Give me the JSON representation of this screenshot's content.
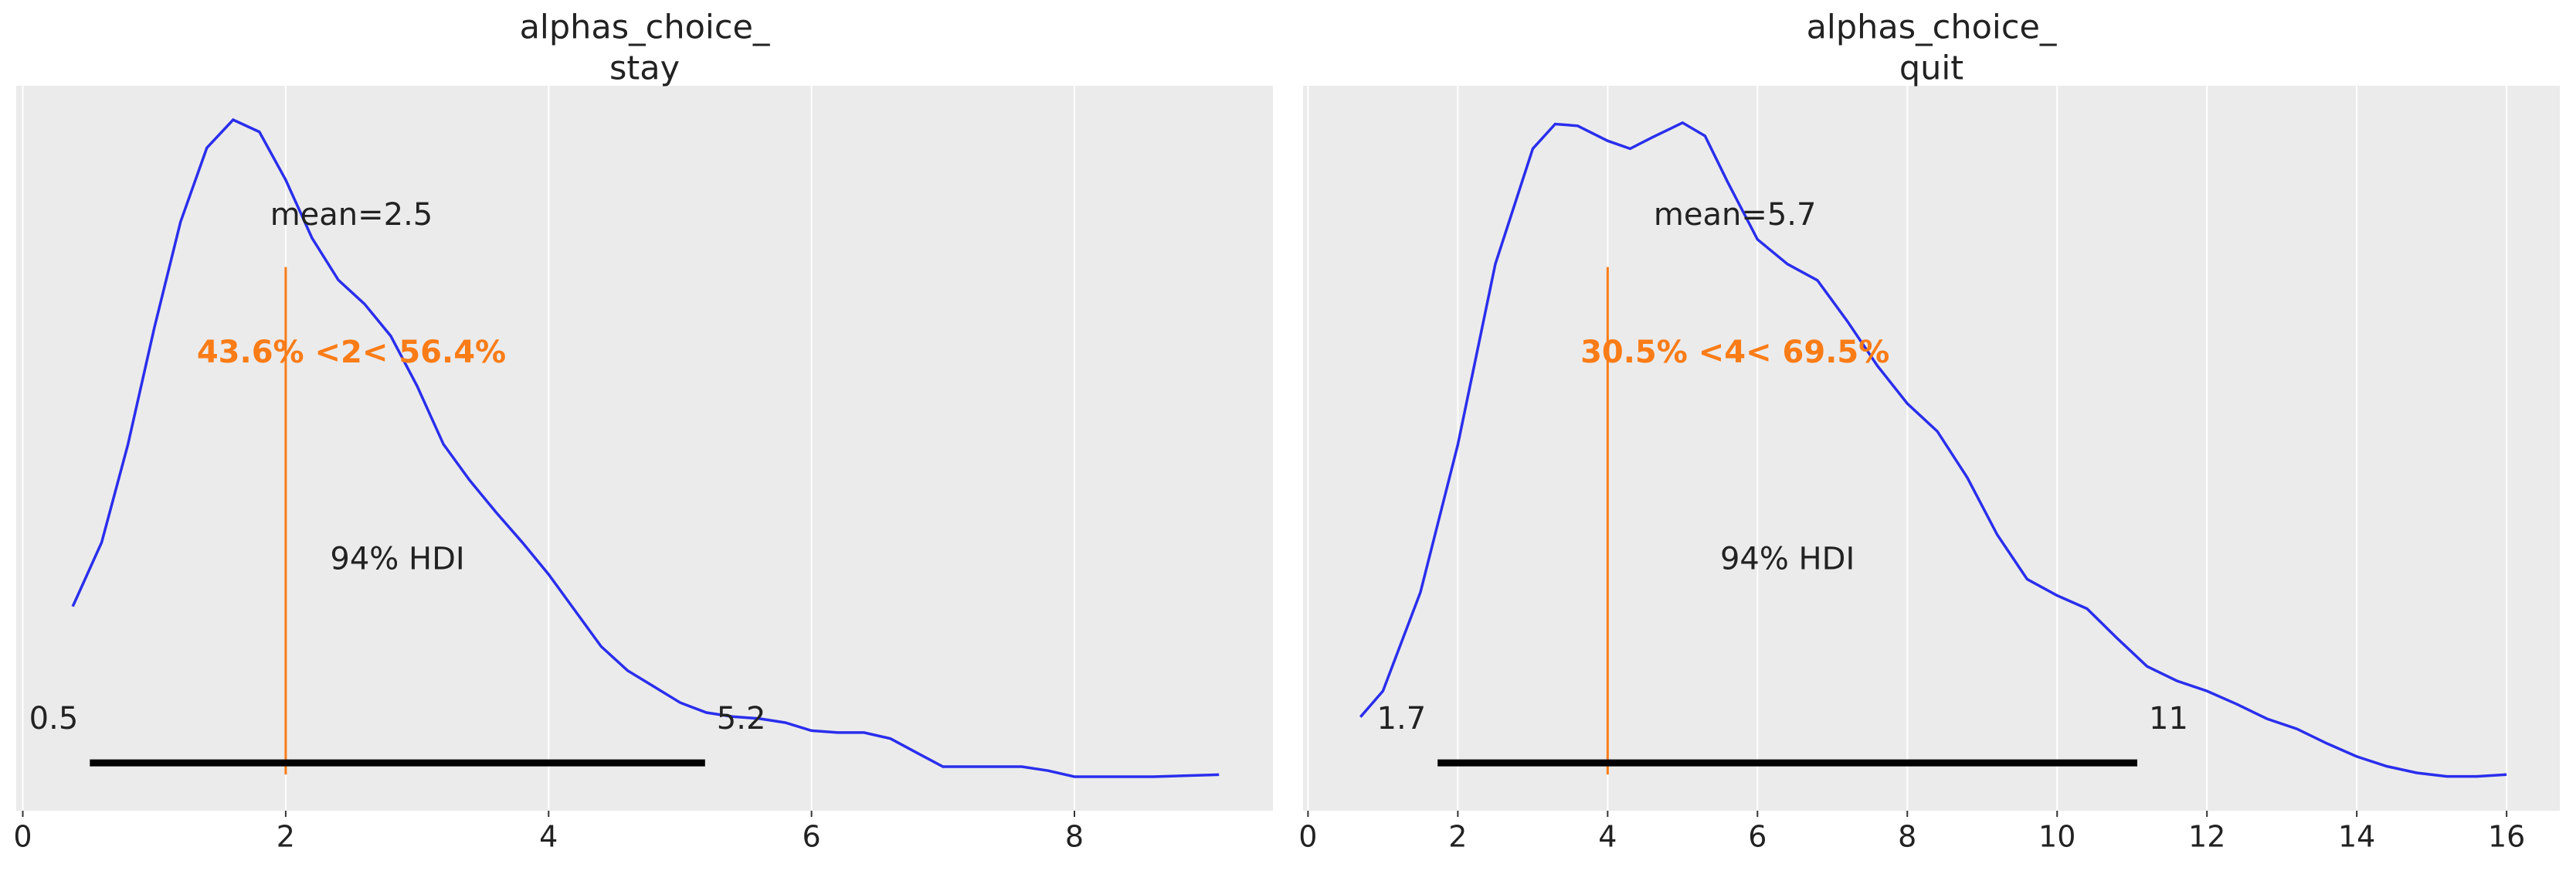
{
  "chart_data": [
    {
      "type": "density",
      "title": [
        "alphas_choice_",
        "stay"
      ],
      "x": [
        0.38,
        0.6,
        0.8,
        1.0,
        1.2,
        1.4,
        1.6,
        1.8,
        2.0,
        2.2,
        2.4,
        2.6,
        2.8,
        3.0,
        3.2,
        3.4,
        3.6,
        3.8,
        4.0,
        4.2,
        4.4,
        4.6,
        4.8,
        5.0,
        5.2,
        5.4,
        5.6,
        5.8,
        6.0,
        6.2,
        6.4,
        6.6,
        6.8,
        7.0,
        7.2,
        7.4,
        7.6,
        7.8,
        8.0,
        8.2,
        8.6,
        9.1
      ],
      "values": [
        0.087,
        0.119,
        0.168,
        0.226,
        0.279,
        0.316,
        0.33,
        0.324,
        0.3,
        0.271,
        0.25,
        0.238,
        0.222,
        0.197,
        0.168,
        0.15,
        0.134,
        0.119,
        0.103,
        0.085,
        0.067,
        0.055,
        0.047,
        0.039,
        0.034,
        0.032,
        0.031,
        0.029,
        0.025,
        0.024,
        0.024,
        0.021,
        0.014,
        0.007,
        0.007,
        0.007,
        0.007,
        0.005,
        0.002,
        0.002,
        0.002,
        0.003
      ],
      "color": "#2a2eec",
      "xlim": [
        -0.05,
        9.51
      ],
      "xticks": [
        0,
        2,
        4,
        6,
        8
      ],
      "ylim": [
        -0.015,
        0.347
      ],
      "grid": true,
      "mean": {
        "value": 2.5,
        "label": "mean=2.5"
      },
      "ref": {
        "value": 2,
        "label": "43.6% <2< 56.4%",
        "color": "#fa7c17"
      },
      "hdi": [
        {
          "value": 0.51,
          "label": "0.5"
        },
        {
          "value": 5.19,
          "label": "5.2"
        }
      ],
      "hdi_label": "94% HDI"
    },
    {
      "type": "density",
      "title": [
        "alphas_choice_",
        "quit"
      ],
      "x": [
        0.7,
        1.0,
        1.5,
        2.0,
        2.5,
        3.0,
        3.3,
        3.6,
        4.0,
        4.3,
        4.6,
        5.0,
        5.3,
        5.6,
        6.0,
        6.4,
        6.8,
        7.2,
        7.6,
        8.0,
        8.4,
        8.8,
        9.2,
        9.6,
        10.0,
        10.4,
        10.8,
        11.2,
        11.6,
        12.0,
        12.4,
        12.8,
        13.2,
        13.6,
        14.0,
        14.4,
        14.8,
        15.2,
        15.6,
        16.0
      ],
      "values": [
        0.0146,
        0.0205,
        0.0429,
        0.0765,
        0.1175,
        0.1437,
        0.1493,
        0.1489,
        0.1455,
        0.1437,
        0.1463,
        0.1496,
        0.1466,
        0.1362,
        0.1231,
        0.1175,
        0.1138,
        0.1045,
        0.0944,
        0.0858,
        0.0795,
        0.069,
        0.056,
        0.0459,
        0.0422,
        0.0392,
        0.0325,
        0.0261,
        0.0228,
        0.0205,
        0.0175,
        0.0142,
        0.0119,
        0.0086,
        0.0056,
        0.0034,
        0.0019,
        0.0011,
        0.0011,
        0.0015
      ],
      "color": "#2a2eec",
      "xlim": [
        -0.066,
        16.71
      ],
      "xticks": [
        0,
        2,
        4,
        6,
        8,
        10,
        12,
        14,
        16
      ],
      "ylim": [
        -0.0067,
        0.158
      ],
      "grid": true,
      "mean": {
        "value": 5.7,
        "label": "mean=5.7"
      },
      "ref": {
        "value": 4,
        "label": "30.5% <4< 69.5%",
        "color": "#fa7c17"
      },
      "hdi": [
        {
          "value": 1.73,
          "label": "1.7"
        },
        {
          "value": 11.07,
          "label": "11"
        }
      ],
      "hdi_label": "94% HDI"
    }
  ]
}
